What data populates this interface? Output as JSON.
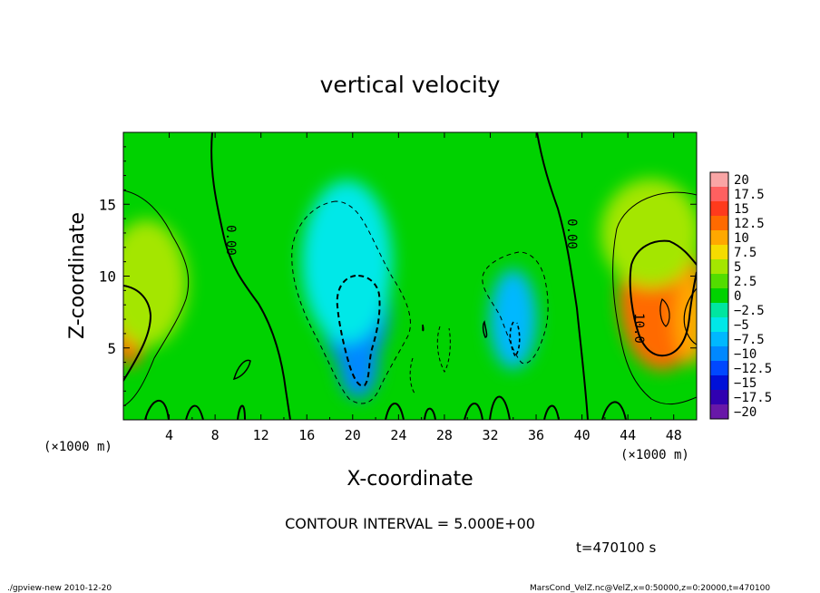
{
  "footer": {
    "program": "./gpview-new  2010-12-20",
    "source": "MarsCond_VelZ.nc@VelZ,x=0:50000,z=0:20000,t=470100"
  },
  "chart_data": {
    "type": "heatmap",
    "title": "vertical velocity",
    "xlabel": "X-coordinate",
    "ylabel": "Z-coordinate",
    "x_unit": "(×1000 m)",
    "y_unit": "(×1000 m)",
    "xlim": [
      0,
      50
    ],
    "ylim": [
      0,
      20
    ],
    "x_ticks": [
      4,
      8,
      12,
      16,
      20,
      24,
      28,
      32,
      36,
      40,
      44,
      48
    ],
    "y_ticks": [
      5,
      10,
      15
    ],
    "contour_interval_text": "CONTOUR INTERVAL = 5.000E+00",
    "time_text": "t=470100 s",
    "contour_labels": [
      "0.00",
      "0.00",
      "10.0"
    ],
    "colorbar": {
      "labels": [
        "20",
        "17.5",
        "15",
        "12.5",
        "10",
        "7.5",
        "5",
        "2.5",
        "0",
        "−2.5",
        "−5",
        "−7.5",
        "−10",
        "−12.5",
        "−15",
        "−17.5",
        "−20"
      ],
      "colors": [
        "#f9a5a5",
        "#ff6060",
        "#ff3a1c",
        "#ff6a00",
        "#ffa800",
        "#f5dc00",
        "#a4e600",
        "#52dd00",
        "#00d200",
        "#00e6a0",
        "#00e8e8",
        "#00b8ff",
        "#0088ff",
        "#0048ff",
        "#0010d8",
        "#3000b0",
        "#6818a8"
      ]
    },
    "features": [
      {
        "x": 0.5,
        "z": 7.5,
        "value": 12.5
      },
      {
        "x": 2.0,
        "z": 9.5,
        "value": 6.0
      },
      {
        "x": 20.2,
        "z": 8.0,
        "value": -10.5
      },
      {
        "x": 20.5,
        "z": 4.0,
        "value": -9.0
      },
      {
        "x": 19.5,
        "z": 11.0,
        "value": -6.0
      },
      {
        "x": 34.0,
        "z": 7.0,
        "value": -7.0
      },
      {
        "x": 47.0,
        "z": 8.5,
        "value": 13.5
      },
      {
        "x": 49.5,
        "z": 7.0,
        "value": 11.0
      },
      {
        "x": 46.0,
        "z": 13.0,
        "value": 5.5
      }
    ]
  }
}
